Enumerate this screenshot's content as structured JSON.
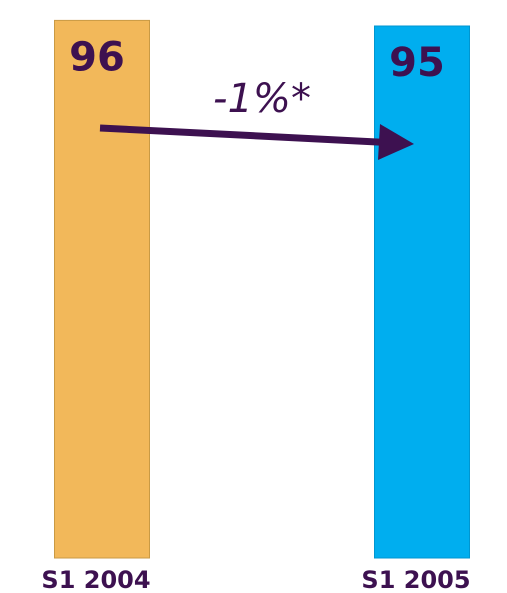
{
  "chart_data": {
    "type": "bar",
    "categories": [
      "S1 2004",
      "S1 2005"
    ],
    "values": [
      96,
      95
    ],
    "data_labels": [
      "96",
      "95"
    ],
    "annotation": "-1%*",
    "colors": {
      "bars": [
        "#f2b85a",
        "#00aeef"
      ],
      "bar_edges": [
        "#c99a45",
        "#0096d0"
      ],
      "labels": "#3d1150",
      "arrow": "#3d1150"
    },
    "grid": false,
    "legend": "none"
  }
}
